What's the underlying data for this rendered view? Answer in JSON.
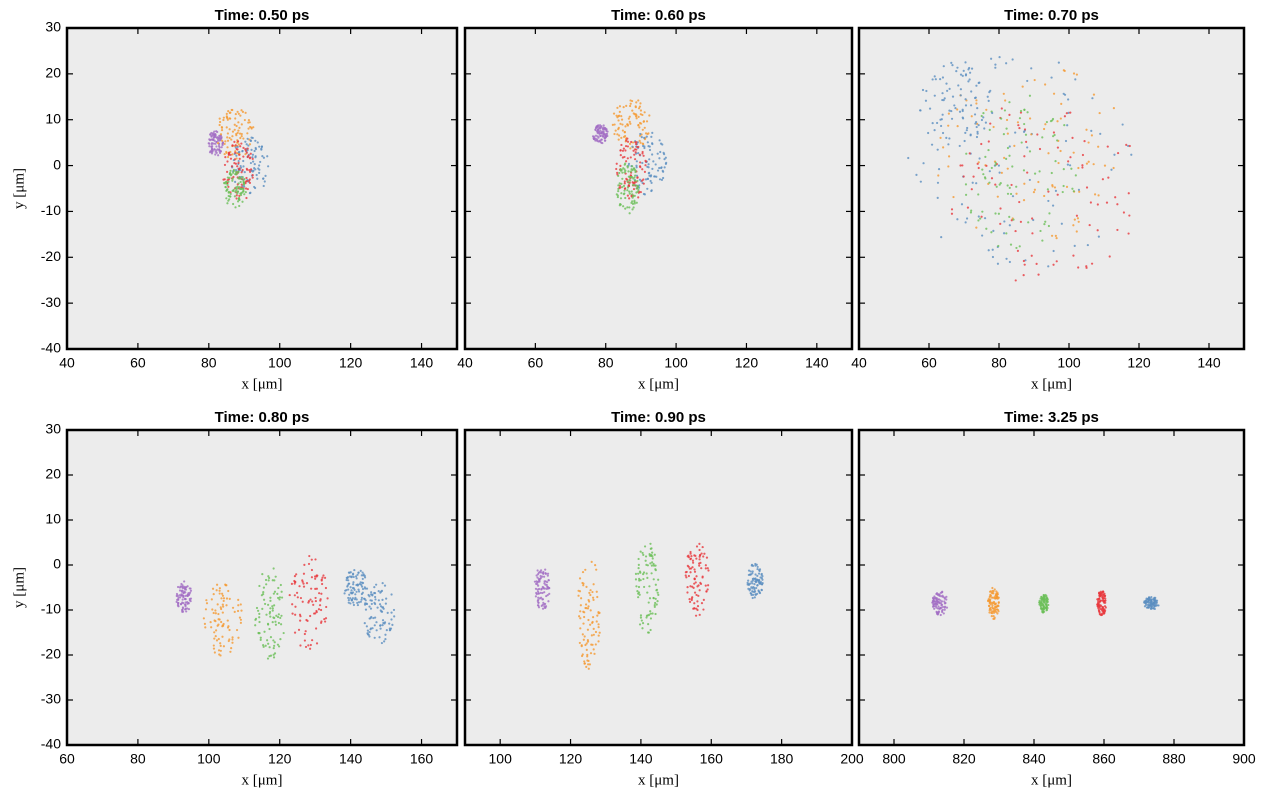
{
  "chart_data": [
    {
      "type": "image",
      "title": "Time: 0.50 ps",
      "xlabel": "x [μm]",
      "ylabel": "y [μm]",
      "xlim": [
        40,
        150
      ],
      "ylim": [
        -40,
        30
      ],
      "xticks": [
        40,
        60,
        80,
        100,
        120,
        140
      ],
      "yticks": [
        -40,
        -30,
        -20,
        -10,
        0,
        10,
        20,
        30
      ]
    },
    {
      "type": "image",
      "title": "Time: 0.60 ps",
      "xlabel": "x [μm]",
      "xlim": [
        40,
        150
      ],
      "ylim": [
        -40,
        30
      ],
      "xticks": [
        40,
        60,
        80,
        100,
        120,
        140
      ],
      "yticks": [
        -40,
        -30,
        -20,
        -10,
        0,
        10,
        20,
        30
      ]
    },
    {
      "type": "image",
      "title": "Time: 0.70 ps",
      "xlabel": "x [μm]",
      "xlim": [
        40,
        150
      ],
      "ylim": [
        -40,
        30
      ],
      "xticks": [
        40,
        60,
        80,
        100,
        120,
        140
      ],
      "yticks": [
        -40,
        -30,
        -20,
        -10,
        0,
        10,
        20,
        30
      ]
    },
    {
      "type": "image",
      "title": "Time: 0.80 ps",
      "xlabel": "x [μm]",
      "ylabel": "y [μm]",
      "xlim": [
        60,
        170
      ],
      "ylim": [
        -40,
        30
      ],
      "xticks": [
        60,
        80,
        100,
        120,
        140,
        160
      ],
      "yticks": [
        -40,
        -30,
        -20,
        -10,
        0,
        10,
        20,
        30
      ]
    },
    {
      "type": "image",
      "title": "Time: 0.90 ps",
      "xlabel": "x [μm]",
      "xlim": [
        90,
        200
      ],
      "ylim": [
        -40,
        30
      ],
      "xticks": [
        100,
        120,
        140,
        160,
        180,
        200
      ],
      "yticks": [
        -40,
        -30,
        -20,
        -10,
        0,
        10,
        20,
        30
      ]
    },
    {
      "type": "image",
      "title": "Time: 3.25 ps",
      "xlabel": "x [μm]",
      "xlim": [
        790,
        900
      ],
      "ylim": [
        -40,
        30
      ],
      "xticks": [
        800,
        820,
        840,
        860,
        880,
        900
      ],
      "yticks": [
        -40,
        -30,
        -20,
        -10,
        0,
        10,
        20,
        30
      ]
    }
  ]
}
